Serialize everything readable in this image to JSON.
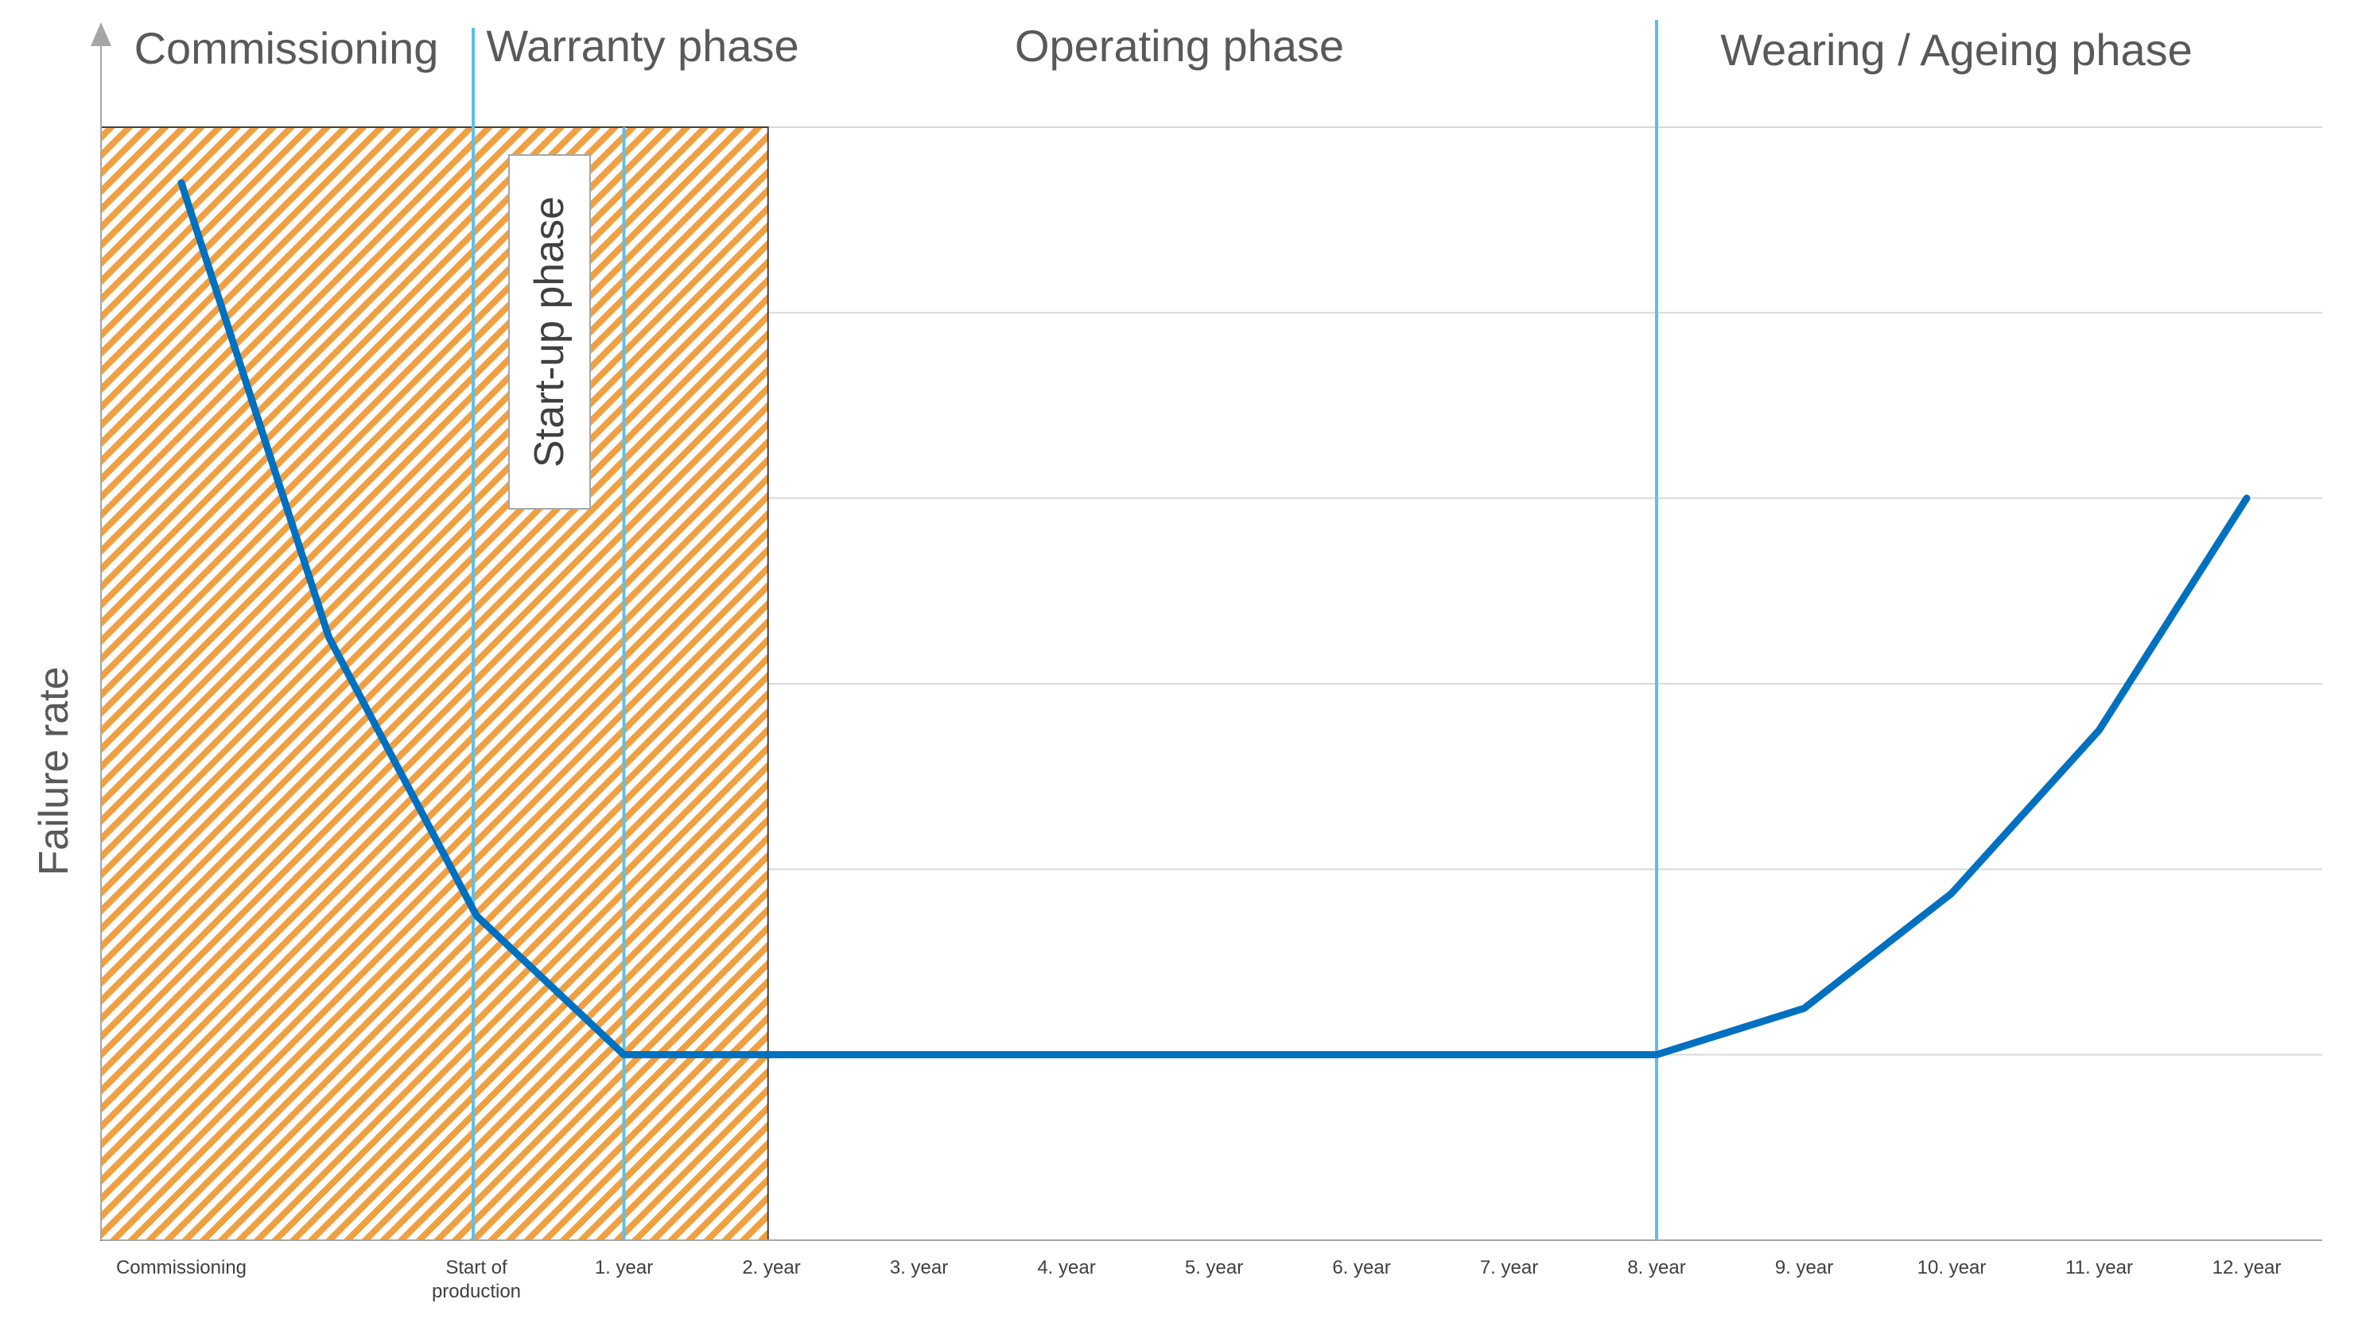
{
  "chart_data": {
    "type": "line",
    "categories": [
      "Commissioning",
      "",
      "Start of\nproduction",
      "1. year",
      "2. year",
      "3. year",
      "4. year",
      "5. year",
      "6. year",
      "7. year",
      "8. year",
      "9. year",
      "10. year",
      "11. year",
      "12. year"
    ],
    "series": [
      {
        "values": [
          5.7,
          3.25,
          1.75,
          1.0,
          1.0,
          1.0,
          1.0,
          1.0,
          1.0,
          1.0,
          1.0,
          1.25,
          1.87,
          2.75,
          4.0
        ]
      }
    ],
    "ylim": [
      0,
      6
    ],
    "ylabel": "Failure rate",
    "xlabel": "",
    "grid": true,
    "phases": [
      {
        "label": "Commissioning"
      },
      {
        "label": "Warranty phase"
      },
      {
        "label": "Operating phase"
      },
      {
        "label": "Wearing / Ageing phase"
      }
    ],
    "annotations": {
      "startup_phase_label": "Start-up phase"
    },
    "colors": {
      "line": "#0070c0",
      "phase_divider": "#5bc0eb",
      "hatch": "#f0a040",
      "grid": "#d9d9d9",
      "axis": "#a6a6a6"
    }
  }
}
